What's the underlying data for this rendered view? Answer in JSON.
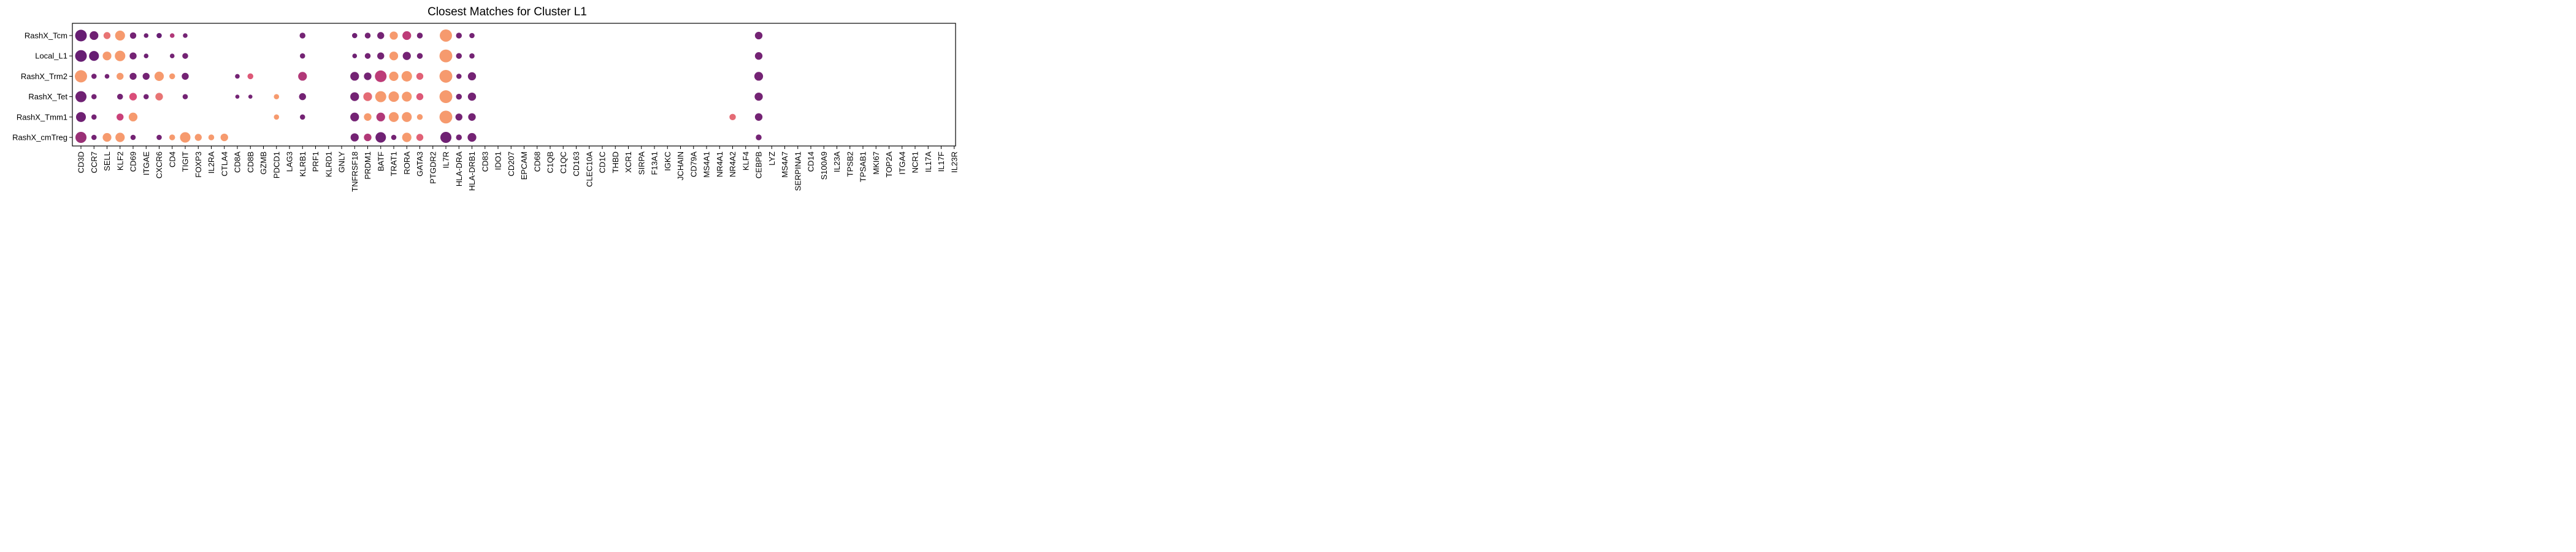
{
  "chart_data": {
    "type": "dot",
    "title": "Closest Matches for Cluster L1",
    "xlabel": "",
    "ylabel": "",
    "grid": false,
    "legend": "none",
    "rows": [
      "RashX_Tcm",
      "Local_L1",
      "RashX_Trm2",
      "RashX_Tet",
      "RashX_Tmm1",
      "RashX_cmTreg"
    ],
    "genes": [
      "CD3D",
      "CCR7",
      "SELL",
      "KLF2",
      "CD69",
      "ITGAE",
      "CXCR6",
      "CD4",
      "TIGIT",
      "FOXP3",
      "IL2RA",
      "CTLA4",
      "CD8A",
      "CD8B",
      "GZMB",
      "PDCD1",
      "LAG3",
      "KLRB1",
      "PRF1",
      "KLRD1",
      "GNLY",
      "TNFRSF18",
      "PRDM1",
      "BATF",
      "TRAT1",
      "RORA",
      "GATA3",
      "PTGDR2",
      "IL7R",
      "HLA-DRA",
      "HLA-DRB1",
      "CD83",
      "IDO1",
      "CD207",
      "EPCAM",
      "CD68",
      "C1QB",
      "C1QC",
      "CD163",
      "CLEC10A",
      "CD1C",
      "THBD",
      "XCR1",
      "SIRPA",
      "F13A1",
      "IGKC",
      "JCHAIN",
      "CD79A",
      "MS4A1",
      "NR4A1",
      "NR4A2",
      "KLF4",
      "CEBPB",
      "LYZ",
      "MS4A7",
      "SERPINA1",
      "CD14",
      "S100A9",
      "IL23A",
      "TPSB2",
      "TPSAB1",
      "MKI67",
      "TOP2A",
      "ITGA4",
      "NCR1",
      "IL17A",
      "IL17F",
      "IL23R"
    ],
    "color_scale": {
      "low": "#5b1a72",
      "mid": "#d6457a",
      "high": "#f9a36d"
    },
    "points": [
      {
        "row": "RashX_Tcm",
        "gene": "CD3D",
        "size": 1.0,
        "color": 0.05
      },
      {
        "row": "RashX_Tcm",
        "gene": "CCR7",
        "size": 0.75,
        "color": 0.08
      },
      {
        "row": "RashX_Tcm",
        "gene": "SELL",
        "size": 0.6,
        "color": 0.75
      },
      {
        "row": "RashX_Tcm",
        "gene": "KLF2",
        "size": 0.85,
        "color": 0.95
      },
      {
        "row": "RashX_Tcm",
        "gene": "CD69",
        "size": 0.55,
        "color": 0.1
      },
      {
        "row": "RashX_Tcm",
        "gene": "ITGAE",
        "size": 0.4,
        "color": 0.08
      },
      {
        "row": "RashX_Tcm",
        "gene": "CXCR6",
        "size": 0.45,
        "color": 0.05
      },
      {
        "row": "RashX_Tcm",
        "gene": "CD4",
        "size": 0.4,
        "color": 0.35
      },
      {
        "row": "RashX_Tcm",
        "gene": "TIGIT",
        "size": 0.4,
        "color": 0.1
      },
      {
        "row": "RashX_Tcm",
        "gene": "KLRB1",
        "size": 0.5,
        "color": 0.1
      },
      {
        "row": "RashX_Tcm",
        "gene": "TNFRSF18",
        "size": 0.45,
        "color": 0.08
      },
      {
        "row": "RashX_Tcm",
        "gene": "PRDM1",
        "size": 0.5,
        "color": 0.1
      },
      {
        "row": "RashX_Tcm",
        "gene": "BATF",
        "size": 0.6,
        "color": 0.1
      },
      {
        "row": "RashX_Tcm",
        "gene": "TRAT1",
        "size": 0.7,
        "color": 0.95
      },
      {
        "row": "RashX_Tcm",
        "gene": "RORA",
        "size": 0.75,
        "color": 0.4
      },
      {
        "row": "RashX_Tcm",
        "gene": "GATA3",
        "size": 0.5,
        "color": 0.1
      },
      {
        "row": "RashX_Tcm",
        "gene": "IL7R",
        "size": 1.05,
        "color": 0.95
      },
      {
        "row": "RashX_Tcm",
        "gene": "HLA-DRA",
        "size": 0.5,
        "color": 0.1
      },
      {
        "row": "RashX_Tcm",
        "gene": "HLA-DRB1",
        "size": 0.45,
        "color": 0.1
      },
      {
        "row": "RashX_Tcm",
        "gene": "CEBPB",
        "size": 0.65,
        "color": 0.1
      },
      {
        "row": "Local_L1",
        "gene": "CD3D",
        "size": 1.0,
        "color": 0.05
      },
      {
        "row": "Local_L1",
        "gene": "CCR7",
        "size": 0.85,
        "color": 0.05
      },
      {
        "row": "Local_L1",
        "gene": "SELL",
        "size": 0.75,
        "color": 0.95
      },
      {
        "row": "Local_L1",
        "gene": "KLF2",
        "size": 0.9,
        "color": 0.95
      },
      {
        "row": "Local_L1",
        "gene": "CD69",
        "size": 0.6,
        "color": 0.1
      },
      {
        "row": "Local_L1",
        "gene": "ITGAE",
        "size": 0.4,
        "color": 0.08
      },
      {
        "row": "Local_L1",
        "gene": "CD4",
        "size": 0.4,
        "color": 0.1
      },
      {
        "row": "Local_L1",
        "gene": "TIGIT",
        "size": 0.5,
        "color": 0.1
      },
      {
        "row": "Local_L1",
        "gene": "KLRB1",
        "size": 0.45,
        "color": 0.1
      },
      {
        "row": "Local_L1",
        "gene": "TNFRSF18",
        "size": 0.4,
        "color": 0.08
      },
      {
        "row": "Local_L1",
        "gene": "PRDM1",
        "size": 0.5,
        "color": 0.1
      },
      {
        "row": "Local_L1",
        "gene": "BATF",
        "size": 0.6,
        "color": 0.1
      },
      {
        "row": "Local_L1",
        "gene": "TRAT1",
        "size": 0.75,
        "color": 0.95
      },
      {
        "row": "Local_L1",
        "gene": "RORA",
        "size": 0.7,
        "color": 0.1
      },
      {
        "row": "Local_L1",
        "gene": "GATA3",
        "size": 0.5,
        "color": 0.1
      },
      {
        "row": "Local_L1",
        "gene": "IL7R",
        "size": 1.1,
        "color": 0.95
      },
      {
        "row": "Local_L1",
        "gene": "HLA-DRA",
        "size": 0.5,
        "color": 0.1
      },
      {
        "row": "Local_L1",
        "gene": "HLA-DRB1",
        "size": 0.45,
        "color": 0.1
      },
      {
        "row": "Local_L1",
        "gene": "CEBPB",
        "size": 0.65,
        "color": 0.1
      },
      {
        "row": "RashX_Trm2",
        "gene": "CD3D",
        "size": 1.05,
        "color": 0.95
      },
      {
        "row": "RashX_Trm2",
        "gene": "CCR7",
        "size": 0.45,
        "color": 0.1
      },
      {
        "row": "RashX_Trm2",
        "gene": "SELL",
        "size": 0.4,
        "color": 0.1
      },
      {
        "row": "RashX_Trm2",
        "gene": "KLF2",
        "size": 0.6,
        "color": 0.95
      },
      {
        "row": "RashX_Trm2",
        "gene": "CD69",
        "size": 0.6,
        "color": 0.1
      },
      {
        "row": "RashX_Trm2",
        "gene": "ITGAE",
        "size": 0.6,
        "color": 0.1
      },
      {
        "row": "RashX_Trm2",
        "gene": "CXCR6",
        "size": 0.8,
        "color": 0.95
      },
      {
        "row": "RashX_Trm2",
        "gene": "CD4",
        "size": 0.5,
        "color": 0.95
      },
      {
        "row": "RashX_Trm2",
        "gene": "TIGIT",
        "size": 0.6,
        "color": 0.1
      },
      {
        "row": "RashX_Trm2",
        "gene": "CD8A",
        "size": 0.4,
        "color": 0.1
      },
      {
        "row": "RashX_Trm2",
        "gene": "CD8B",
        "size": 0.5,
        "color": 0.6
      },
      {
        "row": "RashX_Trm2",
        "gene": "KLRB1",
        "size": 0.75,
        "color": 0.35
      },
      {
        "row": "RashX_Trm2",
        "gene": "TNFRSF18",
        "size": 0.75,
        "color": 0.1
      },
      {
        "row": "RashX_Trm2",
        "gene": "PRDM1",
        "size": 0.65,
        "color": 0.1
      },
      {
        "row": "RashX_Trm2",
        "gene": "BATF",
        "size": 1.0,
        "color": 0.4
      },
      {
        "row": "RashX_Trm2",
        "gene": "TRAT1",
        "size": 0.8,
        "color": 0.95
      },
      {
        "row": "RashX_Trm2",
        "gene": "RORA",
        "size": 0.9,
        "color": 0.95
      },
      {
        "row": "RashX_Trm2",
        "gene": "GATA3",
        "size": 0.6,
        "color": 0.65
      },
      {
        "row": "RashX_Trm2",
        "gene": "IL7R",
        "size": 1.1,
        "color": 0.95
      },
      {
        "row": "RashX_Trm2",
        "gene": "HLA-DRA",
        "size": 0.45,
        "color": 0.1
      },
      {
        "row": "RashX_Trm2",
        "gene": "HLA-DRB1",
        "size": 0.7,
        "color": 0.1
      },
      {
        "row": "RashX_Trm2",
        "gene": "CEBPB",
        "size": 0.75,
        "color": 0.1
      },
      {
        "row": "RashX_Tet",
        "gene": "CD3D",
        "size": 0.95,
        "color": 0.08
      },
      {
        "row": "RashX_Tet",
        "gene": "CCR7",
        "size": 0.45,
        "color": 0.1
      },
      {
        "row": "RashX_Tet",
        "gene": "KLF2",
        "size": 0.5,
        "color": 0.1
      },
      {
        "row": "RashX_Tet",
        "gene": "CD69",
        "size": 0.65,
        "color": 0.55
      },
      {
        "row": "RashX_Tet",
        "gene": "ITGAE",
        "size": 0.45,
        "color": 0.1
      },
      {
        "row": "RashX_Tet",
        "gene": "CXCR6",
        "size": 0.65,
        "color": 0.75
      },
      {
        "row": "RashX_Tet",
        "gene": "TIGIT",
        "size": 0.45,
        "color": 0.1
      },
      {
        "row": "RashX_Tet",
        "gene": "CD8A",
        "size": 0.35,
        "color": 0.1
      },
      {
        "row": "RashX_Tet",
        "gene": "CD8B",
        "size": 0.35,
        "color": 0.1
      },
      {
        "row": "RashX_Tet",
        "gene": "PDCD1",
        "size": 0.45,
        "color": 0.95
      },
      {
        "row": "RashX_Tet",
        "gene": "KLRB1",
        "size": 0.6,
        "color": 0.1
      },
      {
        "row": "RashX_Tet",
        "gene": "TNFRSF18",
        "size": 0.75,
        "color": 0.1
      },
      {
        "row": "RashX_Tet",
        "gene": "PRDM1",
        "size": 0.75,
        "color": 0.7
      },
      {
        "row": "RashX_Tet",
        "gene": "BATF",
        "size": 0.95,
        "color": 0.95
      },
      {
        "row": "RashX_Tet",
        "gene": "TRAT1",
        "size": 0.9,
        "color": 0.95
      },
      {
        "row": "RashX_Tet",
        "gene": "RORA",
        "size": 0.85,
        "color": 0.95
      },
      {
        "row": "RashX_Tet",
        "gene": "GATA3",
        "size": 0.6,
        "color": 0.6
      },
      {
        "row": "RashX_Tet",
        "gene": "IL7R",
        "size": 1.1,
        "color": 0.95
      },
      {
        "row": "RashX_Tet",
        "gene": "HLA-DRA",
        "size": 0.5,
        "color": 0.1
      },
      {
        "row": "RashX_Tet",
        "gene": "HLA-DRB1",
        "size": 0.7,
        "color": 0.1
      },
      {
        "row": "RashX_Tet",
        "gene": "CEBPB",
        "size": 0.7,
        "color": 0.1
      },
      {
        "row": "RashX_Tmm1",
        "gene": "CD3D",
        "size": 0.85,
        "color": 0.08
      },
      {
        "row": "RashX_Tmm1",
        "gene": "CCR7",
        "size": 0.45,
        "color": 0.1
      },
      {
        "row": "RashX_Tmm1",
        "gene": "KLF2",
        "size": 0.6,
        "color": 0.45
      },
      {
        "row": "RashX_Tmm1",
        "gene": "CD69",
        "size": 0.75,
        "color": 0.95
      },
      {
        "row": "RashX_Tmm1",
        "gene": "PDCD1",
        "size": 0.45,
        "color": 0.95
      },
      {
        "row": "RashX_Tmm1",
        "gene": "KLRB1",
        "size": 0.45,
        "color": 0.1
      },
      {
        "row": "RashX_Tmm1",
        "gene": "TNFRSF18",
        "size": 0.75,
        "color": 0.1
      },
      {
        "row": "RashX_Tmm1",
        "gene": "PRDM1",
        "size": 0.65,
        "color": 0.95
      },
      {
        "row": "RashX_Tmm1",
        "gene": "BATF",
        "size": 0.75,
        "color": 0.35
      },
      {
        "row": "RashX_Tmm1",
        "gene": "TRAT1",
        "size": 0.85,
        "color": 0.95
      },
      {
        "row": "RashX_Tmm1",
        "gene": "RORA",
        "size": 0.85,
        "color": 0.95
      },
      {
        "row": "RashX_Tmm1",
        "gene": "GATA3",
        "size": 0.5,
        "color": 0.95
      },
      {
        "row": "RashX_Tmm1",
        "gene": "IL7R",
        "size": 1.1,
        "color": 0.95
      },
      {
        "row": "RashX_Tmm1",
        "gene": "HLA-DRA",
        "size": 0.6,
        "color": 0.1
      },
      {
        "row": "RashX_Tmm1",
        "gene": "HLA-DRB1",
        "size": 0.65,
        "color": 0.1
      },
      {
        "row": "RashX_Tmm1",
        "gene": "NR4A2",
        "size": 0.55,
        "color": 0.7
      },
      {
        "row": "RashX_Tmm1",
        "gene": "CEBPB",
        "size": 0.65,
        "color": 0.1
      },
      {
        "row": "RashX_cmTreg",
        "gene": "CD3D",
        "size": 0.95,
        "color": 0.25
      },
      {
        "row": "RashX_cmTreg",
        "gene": "CCR7",
        "size": 0.45,
        "color": 0.1
      },
      {
        "row": "RashX_cmTreg",
        "gene": "SELL",
        "size": 0.75,
        "color": 0.95
      },
      {
        "row": "RashX_cmTreg",
        "gene": "KLF2",
        "size": 0.8,
        "color": 0.95
      },
      {
        "row": "RashX_cmTreg",
        "gene": "CD69",
        "size": 0.45,
        "color": 0.1
      },
      {
        "row": "RashX_cmTreg",
        "gene": "CXCR6",
        "size": 0.45,
        "color": 0.1
      },
      {
        "row": "RashX_cmTreg",
        "gene": "CD4",
        "size": 0.5,
        "color": 0.95
      },
      {
        "row": "RashX_cmTreg",
        "gene": "TIGIT",
        "size": 0.9,
        "color": 0.95
      },
      {
        "row": "RashX_cmTreg",
        "gene": "FOXP3",
        "size": 0.6,
        "color": 0.95
      },
      {
        "row": "RashX_cmTreg",
        "gene": "IL2RA",
        "size": 0.5,
        "color": 0.95
      },
      {
        "row": "RashX_cmTreg",
        "gene": "CTLA4",
        "size": 0.65,
        "color": 0.95
      },
      {
        "row": "RashX_cmTreg",
        "gene": "TNFRSF18",
        "size": 0.7,
        "color": 0.1
      },
      {
        "row": "RashX_cmTreg",
        "gene": "PRDM1",
        "size": 0.65,
        "color": 0.35
      },
      {
        "row": "RashX_cmTreg",
        "gene": "BATF",
        "size": 0.9,
        "color": 0.08
      },
      {
        "row": "RashX_cmTreg",
        "gene": "TRAT1",
        "size": 0.45,
        "color": 0.1
      },
      {
        "row": "RashX_cmTreg",
        "gene": "RORA",
        "size": 0.8,
        "color": 0.95
      },
      {
        "row": "RashX_cmTreg",
        "gene": "GATA3",
        "size": 0.6,
        "color": 0.65
      },
      {
        "row": "RashX_cmTreg",
        "gene": "IL7R",
        "size": 0.95,
        "color": 0.08
      },
      {
        "row": "RashX_cmTreg",
        "gene": "HLA-DRA",
        "size": 0.5,
        "color": 0.1
      },
      {
        "row": "RashX_cmTreg",
        "gene": "HLA-DRB1",
        "size": 0.75,
        "color": 0.1
      },
      {
        "row": "RashX_cmTreg",
        "gene": "CEBPB",
        "size": 0.5,
        "color": 0.1
      }
    ]
  }
}
